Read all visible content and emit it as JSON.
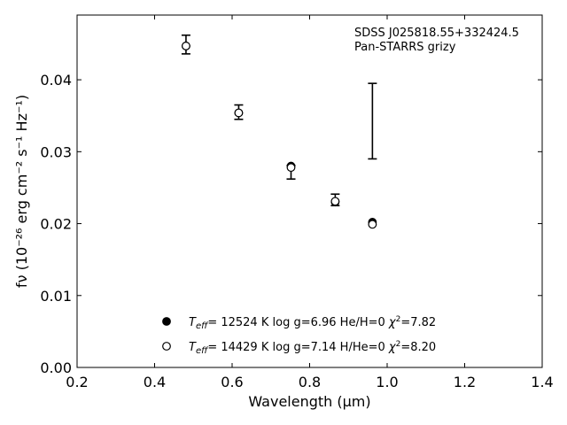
{
  "chart_data": {
    "type": "scatter",
    "xlabel": "Wavelength (μm)",
    "ylabel": "fν (10⁻²⁶ erg cm⁻² s⁻¹ Hz⁻¹)",
    "xlim": [
      0.2,
      1.4
    ],
    "ylim": [
      0.0,
      0.049
    ],
    "xticks": [
      0.2,
      0.4,
      0.6,
      0.8,
      1.0,
      1.2,
      1.4
    ],
    "xtick_labels": [
      "0.2",
      "0.4",
      "0.6",
      "0.8",
      "1.0",
      "1.2",
      "1.4"
    ],
    "yticks": [
      0.0,
      0.01,
      0.02,
      0.03,
      0.04
    ],
    "ytick_labels": [
      "0.00",
      "0.01",
      "0.02",
      "0.03",
      "0.04"
    ],
    "grid": false,
    "legend_position": "bottom-center",
    "annotation_lines": [
      "SDSS J025818.55+332424.5",
      "Pan-STARRS grizy"
    ],
    "observed": [
      {
        "x": 0.481,
        "lo": 0.0436,
        "hi": 0.0462
      },
      {
        "x": 0.617,
        "lo": 0.0345,
        "hi": 0.0365
      },
      {
        "x": 0.752,
        "lo": 0.0262,
        "hi": 0.0281
      },
      {
        "x": 0.866,
        "lo": 0.0225,
        "hi": 0.0241
      },
      {
        "x": 0.962,
        "lo": 0.029,
        "hi": 0.0395
      }
    ],
    "series": [
      {
        "name": "Teff= 12524 K log g=6.96 He/H=0 χ²=7.82",
        "marker": "filled",
        "points": [
          {
            "x": 0.481,
            "y": 0.0447
          },
          {
            "x": 0.617,
            "y": 0.0354
          },
          {
            "x": 0.752,
            "y": 0.028
          },
          {
            "x": 0.866,
            "y": 0.023
          },
          {
            "x": 0.962,
            "y": 0.0202
          }
        ]
      },
      {
        "name": "Teff= 14429 K log g=7.14 H/He=0 χ²=8.20",
        "marker": "open",
        "points": [
          {
            "x": 0.481,
            "y": 0.0447
          },
          {
            "x": 0.617,
            "y": 0.0354
          },
          {
            "x": 0.752,
            "y": 0.0278
          },
          {
            "x": 0.866,
            "y": 0.0231
          },
          {
            "x": 0.962,
            "y": 0.0199
          }
        ]
      }
    ],
    "legend_entries": [
      {
        "prefix": "T",
        "sub": "eff",
        "text": "= 12524 K  log g=6.96  He/H=0  ",
        "chi": "χ",
        "sup": "2",
        "chi_val": "=7.82",
        "marker": "filled"
      },
      {
        "prefix": "T",
        "sub": "eff",
        "text": "= 14429 K  log g=7.14  H/He=0  ",
        "chi": "χ",
        "sup": "2",
        "chi_val": "=8.20",
        "marker": "open"
      }
    ],
    "colors": {
      "marker": "#000000",
      "axes": "#000000",
      "background": "#ffffff"
    }
  }
}
